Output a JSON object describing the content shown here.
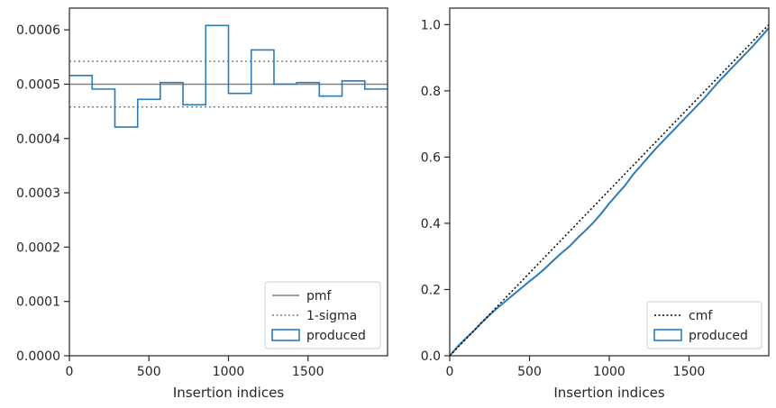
{
  "colors": {
    "produced": "#2b7bb9",
    "pmf": "#808080",
    "sigma": "#808080",
    "cmf": "#000000",
    "axes": "#262626",
    "legend_border": "#cccccc"
  },
  "chart_data": [
    {
      "type": "histogram",
      "xlabel": "Insertion indices",
      "ylabel": "",
      "xlim": [
        0,
        2000
      ],
      "ylim": [
        0,
        0.00064
      ],
      "xticks": [
        0,
        500,
        1000,
        1500
      ],
      "xtick_labels": [
        "0",
        "500",
        "1000",
        "1500"
      ],
      "yticks": [
        0,
        0.0001,
        0.0002,
        0.0003,
        0.0004,
        0.0005,
        0.0006
      ],
      "ytick_labels": [
        "0.0000",
        "0.0001",
        "0.0002",
        "0.0003",
        "0.0004",
        "0.0005",
        "0.0006"
      ],
      "bin_edges": [
        0,
        143,
        286,
        429,
        571,
        714,
        857,
        1000,
        1143,
        1286,
        1429,
        1571,
        1714,
        1857,
        2000
      ],
      "produced": [
        0.000516,
        0.000491,
        0.000421,
        0.000472,
        0.000503,
        0.000462,
        0.000608,
        0.000483,
        0.000563,
        0.0005,
        0.000503,
        0.000478,
        0.000506,
        0.000491
      ],
      "pmf": 0.0005,
      "sigma_upper": 0.000542,
      "sigma_lower": 0.000458,
      "legend": {
        "position": "lower right",
        "entries": [
          {
            "label": "pmf",
            "style": "line"
          },
          {
            "label": "1-sigma",
            "style": "dotted"
          },
          {
            "label": "produced",
            "style": "patch"
          }
        ]
      }
    },
    {
      "type": "line",
      "xlabel": "Insertion indices",
      "ylabel": "",
      "xlim": [
        0,
        2000
      ],
      "ylim": [
        0,
        1.05
      ],
      "xticks": [
        0,
        500,
        1000,
        1500
      ],
      "xtick_labels": [
        "0",
        "500",
        "1000",
        "1500"
      ],
      "yticks": [
        0,
        0.2,
        0.4,
        0.6,
        0.8,
        1.0
      ],
      "ytick_labels": [
        "0.0",
        "0.2",
        "0.4",
        "0.6",
        "0.8",
        "1.0"
      ],
      "series": [
        {
          "name": "cmf",
          "style": "dotted",
          "x": [
            0,
            2000
          ],
          "y": [
            0,
            1.0
          ]
        },
        {
          "name": "produced",
          "style": "solid",
          "x": [
            0,
            50,
            100,
            150,
            200,
            250,
            300,
            350,
            400,
            450,
            500,
            550,
            600,
            650,
            700,
            750,
            800,
            850,
            900,
            950,
            1000,
            1050,
            1100,
            1150,
            1200,
            1250,
            1300,
            1350,
            1400,
            1450,
            1500,
            1550,
            1600,
            1650,
            1700,
            1750,
            1800,
            1850,
            1900,
            1950,
            2000
          ],
          "y": [
            0,
            0.028,
            0.052,
            0.075,
            0.1,
            0.123,
            0.145,
            0.165,
            0.185,
            0.205,
            0.225,
            0.244,
            0.265,
            0.288,
            0.31,
            0.33,
            0.355,
            0.378,
            0.402,
            0.43,
            0.46,
            0.488,
            0.515,
            0.548,
            0.575,
            0.603,
            0.63,
            0.655,
            0.68,
            0.705,
            0.73,
            0.755,
            0.78,
            0.808,
            0.835,
            0.86,
            0.885,
            0.91,
            0.935,
            0.962,
            0.99
          ]
        }
      ],
      "legend": {
        "position": "lower right",
        "entries": [
          {
            "label": "cmf",
            "style": "dotted"
          },
          {
            "label": "produced",
            "style": "patch"
          }
        ]
      }
    }
  ]
}
